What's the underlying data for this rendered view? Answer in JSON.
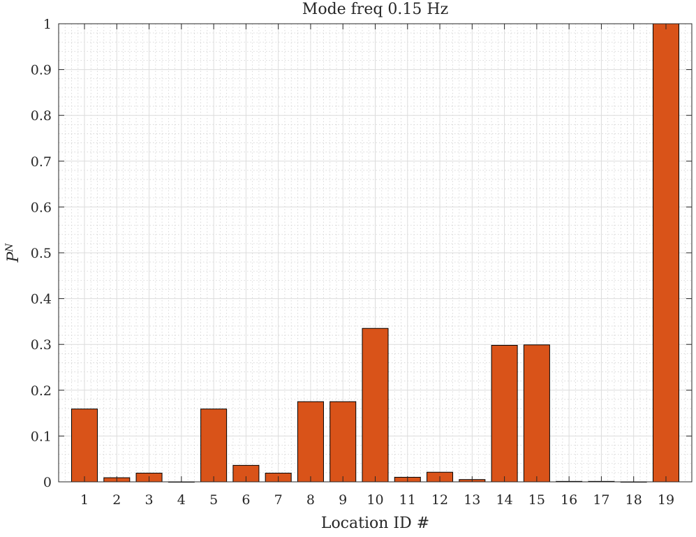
{
  "chart_data": {
    "type": "bar",
    "title": "Mode freq 0.15 Hz",
    "xlabel": "Location ID #",
    "ylabel_main": "P",
    "ylabel_superscript": "N",
    "categories": [
      "1",
      "2",
      "3",
      "4",
      "5",
      "6",
      "7",
      "8",
      "9",
      "10",
      "11",
      "12",
      "13",
      "14",
      "15",
      "16",
      "17",
      "18",
      "19"
    ],
    "values": [
      0.159,
      0.009,
      0.019,
      0.0,
      0.159,
      0.036,
      0.019,
      0.175,
      0.175,
      0.335,
      0.01,
      0.021,
      0.005,
      0.298,
      0.299,
      0.001,
      0.001,
      0.0,
      1.0
    ],
    "ylim": [
      0,
      1
    ],
    "yticks": [
      "0",
      "0.1",
      "0.2",
      "0.3",
      "0.4",
      "0.5",
      "0.6",
      "0.7",
      "0.8",
      "0.9",
      "1"
    ],
    "xlim": [
      0.2,
      19.8
    ],
    "grid": true,
    "minor_grid": true,
    "bar_color": "#D95319",
    "bar_edge_color": "#000000"
  }
}
